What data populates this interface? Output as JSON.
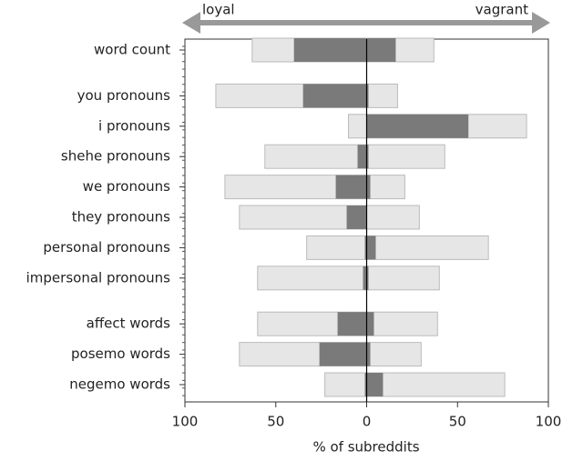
{
  "chart_data": {
    "type": "diverging-bar",
    "annotations": [
      "loyal",
      "vagrant"
    ],
    "xlabel": "% of subreddits",
    "categories": [
      "word count",
      "you pronouns",
      "i pronouns",
      "shehe pronouns",
      "we pronouns",
      "they pronouns",
      "personal pronouns",
      "impersonal pronouns",
      "affect words",
      "posemo words",
      "negemo words"
    ],
    "series": [
      {
        "color": "#e6e6e6",
        "values": [
          -63,
          -83,
          -10,
          -56,
          -78,
          -70,
          -33,
          -60,
          -60,
          -70,
          -23
        ]
      },
      {
        "color": "#e6e6e6",
        "values": [
          37,
          17,
          88,
          43,
          21,
          29,
          67,
          40,
          39,
          30,
          76
        ]
      },
      {
        "color": "#7a7a7a",
        "values": [
          -40,
          -35,
          0,
          -5,
          -17,
          -11,
          -1,
          -2,
          -16,
          -26,
          -1
        ]
      },
      {
        "color": "#7a7a7a",
        "values": [
          16,
          1,
          56,
          1,
          2,
          0,
          5,
          1,
          4,
          2,
          9
        ]
      }
    ],
    "xlim": [
      -100,
      100
    ],
    "xticks": [
      {
        "value": -100,
        "label": "100"
      },
      {
        "value": -50,
        "label": "50"
      },
      0,
      50,
      100
    ]
  }
}
